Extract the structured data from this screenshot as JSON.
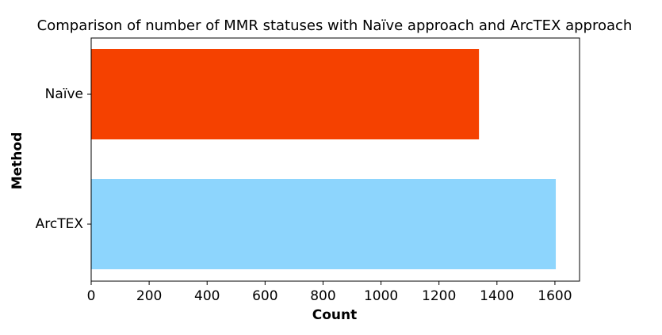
{
  "chart_data": {
    "type": "barh",
    "title": "Comparison of number of MMR statuses with Naïve approach and ArcTEX approach",
    "x_label": "Count",
    "y_label": "Method",
    "categories": [
      "Naïve",
      "ArcTEX"
    ],
    "values": [
      1338,
      1603
    ],
    "colors": [
      "#f54100",
      "#8dd5fd"
    ],
    "xlim": [
      0,
      1685
    ],
    "xticks": [
      0,
      200,
      400,
      600,
      800,
      1000,
      1200,
      1400,
      1600
    ]
  }
}
